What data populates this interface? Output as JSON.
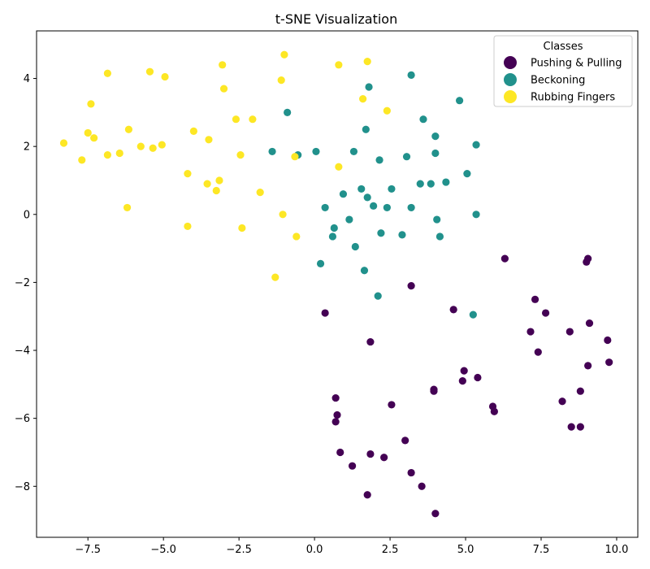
{
  "chart_data": {
    "type": "scatter",
    "title": "t-SNE Visualization",
    "xlabel": "",
    "ylabel": "",
    "xlim": [
      -9.2,
      10.7
    ],
    "ylim": [
      -9.5,
      5.4
    ],
    "xticks": [
      -7.5,
      -5.0,
      -2.5,
      0.0,
      2.5,
      5.0,
      7.5,
      10.0
    ],
    "xtick_labels": [
      "−7.5",
      "−5.0",
      "−2.5",
      "0.0",
      "2.5",
      "5.0",
      "7.5",
      "10.0"
    ],
    "yticks": [
      -8,
      -6,
      -4,
      -2,
      0,
      2,
      4
    ],
    "ytick_labels": [
      "−8",
      "−6",
      "−4",
      "−2",
      "0",
      "2",
      "4"
    ],
    "grid": false,
    "legend": {
      "title": "Classes",
      "placement": "top-right"
    },
    "series": [
      {
        "name": "Pushing & Pulling",
        "color": "#440154",
        "points": [
          [
            6.3,
            -1.3
          ],
          [
            9.05,
            -1.3
          ],
          [
            9.0,
            -1.4
          ],
          [
            3.2,
            -2.1
          ],
          [
            0.35,
            -2.9
          ],
          [
            4.6,
            -2.8
          ],
          [
            7.3,
            -2.5
          ],
          [
            7.65,
            -2.9
          ],
          [
            9.1,
            -3.2
          ],
          [
            7.15,
            -3.45
          ],
          [
            8.45,
            -3.45
          ],
          [
            9.7,
            -3.7
          ],
          [
            1.85,
            -3.75
          ],
          [
            7.4,
            -4.05
          ],
          [
            9.75,
            -4.35
          ],
          [
            9.05,
            -4.45
          ],
          [
            4.95,
            -4.6
          ],
          [
            5.4,
            -4.8
          ],
          [
            4.9,
            -4.9
          ],
          [
            3.95,
            -5.15
          ],
          [
            3.95,
            -5.2
          ],
          [
            8.8,
            -5.2
          ],
          [
            0.7,
            -5.4
          ],
          [
            2.55,
            -5.6
          ],
          [
            8.2,
            -5.5
          ],
          [
            5.9,
            -5.65
          ],
          [
            5.95,
            -5.8
          ],
          [
            0.75,
            -5.9
          ],
          [
            0.7,
            -6.1
          ],
          [
            8.5,
            -6.25
          ],
          [
            8.8,
            -6.25
          ],
          [
            3.0,
            -6.65
          ],
          [
            0.85,
            -7.0
          ],
          [
            1.85,
            -7.05
          ],
          [
            2.3,
            -7.15
          ],
          [
            1.25,
            -7.4
          ],
          [
            3.2,
            -7.6
          ],
          [
            3.55,
            -8.0
          ],
          [
            1.75,
            -8.25
          ],
          [
            4.0,
            -8.8
          ]
        ]
      },
      {
        "name": "Beckoning",
        "color": "#21918c",
        "points": [
          [
            3.2,
            4.1
          ],
          [
            1.8,
            3.75
          ],
          [
            4.8,
            3.35
          ],
          [
            -0.9,
            3.0
          ],
          [
            3.6,
            2.8
          ],
          [
            1.7,
            2.5
          ],
          [
            4.0,
            2.3
          ],
          [
            5.35,
            2.05
          ],
          [
            -1.4,
            1.85
          ],
          [
            0.05,
            1.85
          ],
          [
            1.3,
            1.85
          ],
          [
            -0.55,
            1.75
          ],
          [
            4.0,
            1.8
          ],
          [
            3.05,
            1.7
          ],
          [
            2.15,
            1.6
          ],
          [
            5.05,
            1.2
          ],
          [
            3.5,
            0.9
          ],
          [
            3.85,
            0.9
          ],
          [
            4.35,
            0.95
          ],
          [
            1.55,
            0.75
          ],
          [
            2.55,
            0.75
          ],
          [
            0.95,
            0.6
          ],
          [
            1.75,
            0.5
          ],
          [
            1.95,
            0.25
          ],
          [
            0.35,
            0.2
          ],
          [
            2.4,
            0.2
          ],
          [
            3.2,
            0.2
          ],
          [
            5.35,
            0.0
          ],
          [
            1.15,
            -0.15
          ],
          [
            4.05,
            -0.15
          ],
          [
            0.65,
            -0.4
          ],
          [
            2.2,
            -0.55
          ],
          [
            2.9,
            -0.6
          ],
          [
            4.15,
            -0.65
          ],
          [
            0.6,
            -0.65
          ],
          [
            1.35,
            -0.95
          ],
          [
            0.2,
            -1.45
          ],
          [
            1.65,
            -1.65
          ],
          [
            2.1,
            -2.4
          ],
          [
            5.25,
            -2.95
          ]
        ]
      },
      {
        "name": "Rubbing Fingers",
        "color": "#fde725",
        "points": [
          [
            -1.0,
            4.7
          ],
          [
            1.75,
            4.5
          ],
          [
            -3.05,
            4.4
          ],
          [
            0.8,
            4.4
          ],
          [
            -5.45,
            4.2
          ],
          [
            -6.85,
            4.15
          ],
          [
            -4.95,
            4.05
          ],
          [
            -1.1,
            3.95
          ],
          [
            -3.0,
            3.7
          ],
          [
            1.6,
            3.4
          ],
          [
            -7.4,
            3.25
          ],
          [
            2.4,
            3.05
          ],
          [
            -2.6,
            2.8
          ],
          [
            -2.05,
            2.8
          ],
          [
            -6.15,
            2.5
          ],
          [
            -4.0,
            2.45
          ],
          [
            -7.5,
            2.4
          ],
          [
            -7.3,
            2.25
          ],
          [
            -3.5,
            2.2
          ],
          [
            -8.3,
            2.1
          ],
          [
            -5.05,
            2.05
          ],
          [
            -5.75,
            2.0
          ],
          [
            -5.35,
            1.95
          ],
          [
            -6.45,
            1.8
          ],
          [
            -6.85,
            1.75
          ],
          [
            -2.45,
            1.75
          ],
          [
            -0.65,
            1.7
          ],
          [
            -7.7,
            1.6
          ],
          [
            0.8,
            1.4
          ],
          [
            -4.2,
            1.2
          ],
          [
            -3.15,
            1.0
          ],
          [
            -3.55,
            0.9
          ],
          [
            -3.25,
            0.7
          ],
          [
            -1.8,
            0.65
          ],
          [
            -6.2,
            0.2
          ],
          [
            -1.05,
            0.0
          ],
          [
            -4.2,
            -0.35
          ],
          [
            -2.4,
            -0.4
          ],
          [
            -0.6,
            -0.65
          ],
          [
            -1.3,
            -1.85
          ]
        ]
      }
    ]
  }
}
